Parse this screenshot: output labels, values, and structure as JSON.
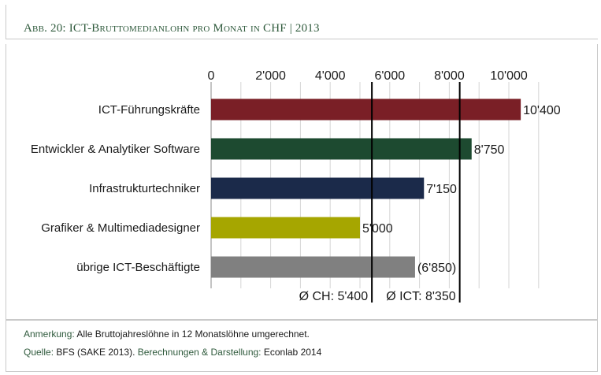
{
  "header": {
    "title": "Abb. 20:  ICT-Bruttomedianlohn pro Monat in CHF | 2013"
  },
  "chart_data": {
    "type": "bar",
    "orientation": "horizontal",
    "categories": [
      "ICT-Führungskräfte",
      "Entwickler & Analytiker Software",
      "Infrastrukturtechniker",
      "Grafiker & Multimediadesigner",
      "übrige ICT-Beschäftigte"
    ],
    "values": [
      10400,
      8750,
      7150,
      5000,
      6850
    ],
    "value_labels": [
      "10'400",
      "8'750",
      "7'150",
      "5'000",
      "(6'850)"
    ],
    "colors": [
      "#7a1f26",
      "#1d4a30",
      "#1b2a4a",
      "#a6a600",
      "#808080"
    ],
    "xlim": [
      0,
      11000
    ],
    "xticks": [
      0,
      2000,
      4000,
      6000,
      8000,
      10000
    ],
    "xtick_labels": [
      "0",
      "2'000",
      "4'000",
      "6'000",
      "8'000",
      "10'000"
    ],
    "axis_position": "top",
    "grid": true,
    "reference_lines": [
      {
        "value": 5400,
        "label": "Ø CH: 5'400"
      },
      {
        "value": 8350,
        "label": "Ø ICT: 8'350"
      }
    ]
  },
  "notes": {
    "anmerkung_label": "Anmerkung:",
    "anmerkung_text": " Alle Bruttojahreslöhne in 12 Monatslöhne umgerechnet.",
    "quelle_label": "Quelle:",
    "quelle_text": " BFS (SAKE 2013). ",
    "berechnungen_label": "Berechnungen & Darstellung:",
    "berechnungen_text": " Econlab 2014"
  }
}
